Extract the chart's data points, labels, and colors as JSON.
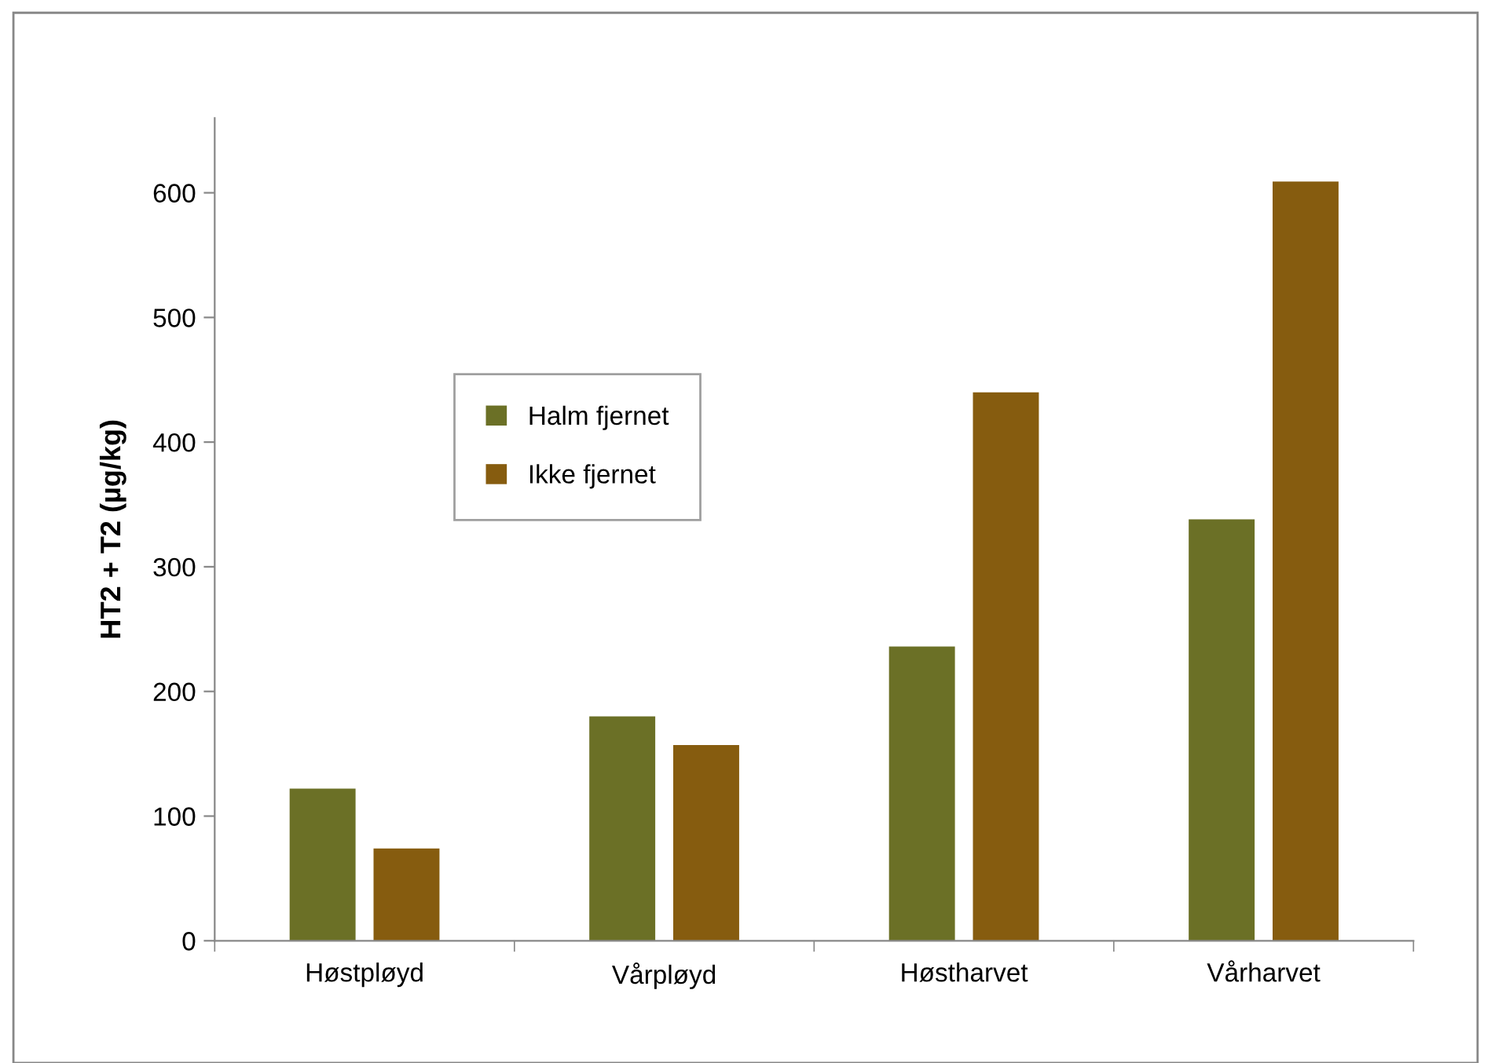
{
  "chart_data": {
    "type": "bar",
    "ylabel": "HT2 + T2 (µg/kg)",
    "categories": [
      "Høstpløyd",
      "Vårpløyd",
      "Høstharvet",
      "Vårharvet"
    ],
    "series": [
      {
        "name": "Halm fjernet",
        "color": "#6b7026",
        "values": [
          122,
          180,
          236,
          338
        ]
      },
      {
        "name": "Ikke fjernet",
        "color": "#865c0f",
        "values": [
          74,
          157,
          440,
          609
        ]
      }
    ],
    "ylim": [
      0,
      660
    ],
    "yticks": [
      0,
      100,
      200,
      300,
      400,
      500,
      600
    ],
    "grid": false,
    "legend": "center left"
  }
}
